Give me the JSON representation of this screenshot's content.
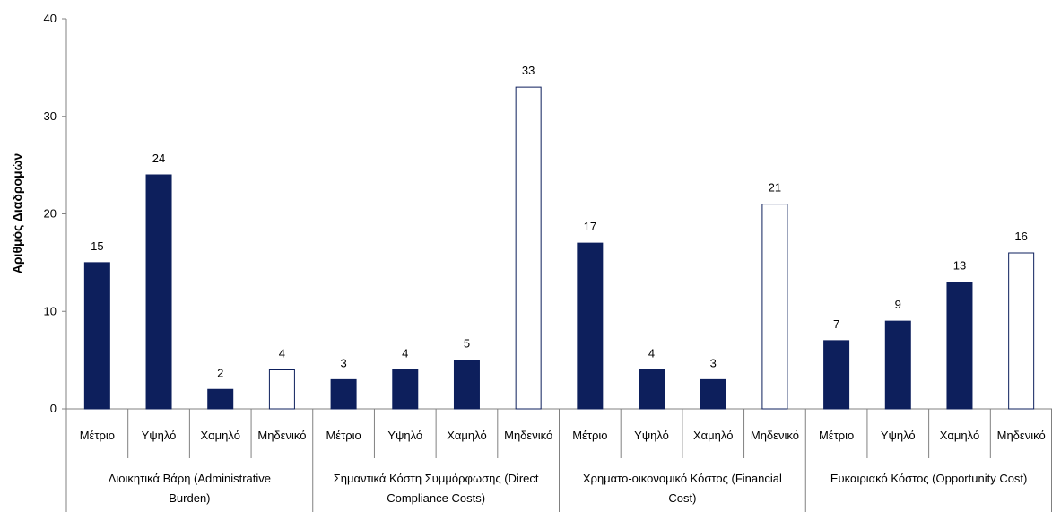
{
  "chart_data": {
    "type": "bar",
    "ylabel": "Αριθμός Διαδρομών",
    "ylim": [
      0,
      40
    ],
    "yticks": [
      "0",
      "10",
      "20",
      "30",
      "40"
    ],
    "grid": false,
    "colors": {
      "filled": "#0d1f5c",
      "outline": "#0d1f5c",
      "empty_fill": "#ffffff"
    },
    "groups": [
      {
        "label_lines": [
          "Διοικητικά Βάρη (Administrative",
          "Burden)"
        ],
        "categories": [
          "Μέτριο",
          "Υψηλό",
          "Χαμηλό",
          "Μηδενικό"
        ],
        "values": [
          15,
          24,
          2,
          4
        ]
      },
      {
        "label_lines": [
          "Σημαντικά Κόστη Συμμόρφωσης (Direct",
          "Compliance Costs)"
        ],
        "categories": [
          "Μέτριο",
          "Υψηλό",
          "Χαμηλό",
          "Μηδενικό"
        ],
        "values": [
          3,
          4,
          5,
          33
        ]
      },
      {
        "label_lines": [
          "Χρηματο-οικονομικό Κόστος (Financial",
          "Cost)"
        ],
        "categories": [
          "Μέτριο",
          "Υψηλό",
          "Χαμηλό",
          "Μηδενικό"
        ],
        "values": [
          17,
          4,
          3,
          21
        ]
      },
      {
        "label_lines": [
          "Ευκαιριακό Κόστος (Opportunity Cost)"
        ],
        "categories": [
          "Μέτριο",
          "Υψηλό",
          "Χαμηλό",
          "Μηδενικό"
        ],
        "values": [
          7,
          9,
          13,
          16
        ]
      }
    ],
    "hollow_category": "Μηδενικό"
  }
}
